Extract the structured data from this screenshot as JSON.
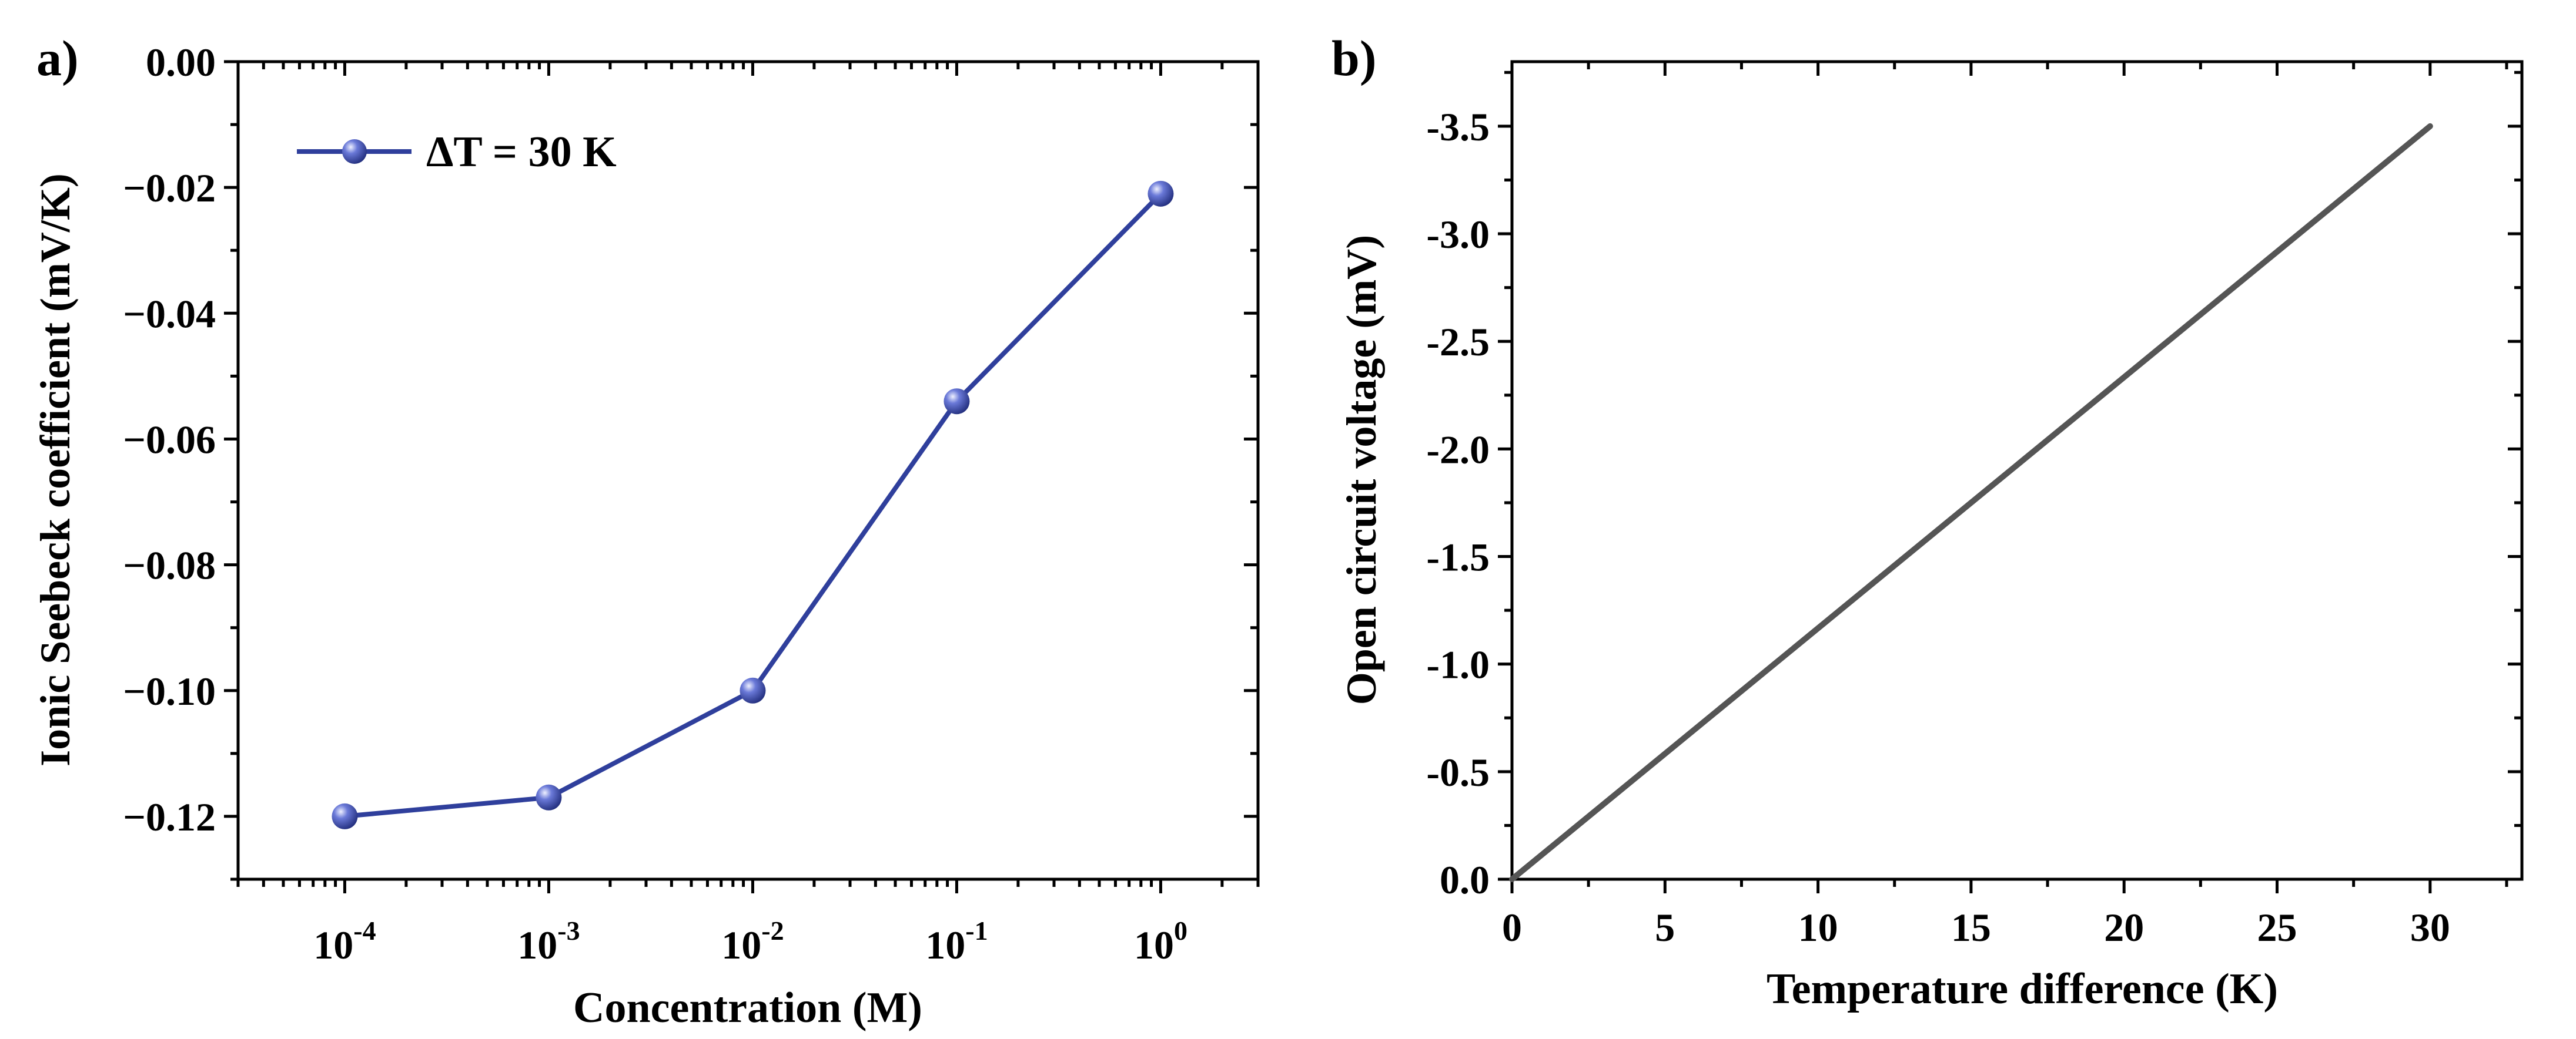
{
  "chart_data": [
    {
      "panel_label": "a)",
      "type": "line",
      "x_scale": "log",
      "x": [
        0.0001,
        0.001,
        0.01,
        0.1,
        1
      ],
      "x_tick_bases": [
        "10",
        "10",
        "10",
        "10",
        "10"
      ],
      "x_tick_exponents": [
        "-4",
        "-3",
        "-2",
        "-1",
        "0"
      ],
      "series": [
        {
          "name": "ΔT = 30 K",
          "values": [
            -0.12,
            -0.117,
            -0.1,
            -0.054,
            -0.021
          ],
          "color": "#2f3f9c",
          "marker": "sphere"
        }
      ],
      "xlabel": "Concentration (M)",
      "ylabel": "Ionic Seebeck coefficient (mV/K)",
      "xlim": [
        3e-05,
        3
      ],
      "ylim": [
        -0.13,
        0.0
      ],
      "y_ticks": [
        0.0,
        -0.02,
        -0.04,
        -0.06,
        -0.08,
        -0.1,
        -0.12
      ],
      "y_tick_labels": [
        "0.00",
        "−0.02",
        "−0.04",
        "−0.06",
        "−0.08",
        "−0.10",
        "−0.12"
      ],
      "legend_position": "top-left",
      "grid": false
    },
    {
      "panel_label": "b)",
      "type": "line",
      "x": [
        0,
        30
      ],
      "series": [
        {
          "name": "Open circuit voltage",
          "values": [
            0.0,
            -3.5
          ],
          "color": "#555555"
        }
      ],
      "xlabel": "Temperature difference (K)",
      "ylabel": "Open circuit voltage (mV)",
      "xlim": [
        0,
        33
      ],
      "ylim": [
        0.0,
        -3.8
      ],
      "x_ticks": [
        0,
        5,
        10,
        15,
        20,
        25,
        30
      ],
      "x_tick_labels": [
        "0",
        "5",
        "10",
        "15",
        "20",
        "25",
        "30"
      ],
      "y_ticks": [
        0.0,
        -0.5,
        -1.0,
        -1.5,
        -2.0,
        -2.5,
        -3.0,
        -3.5
      ],
      "y_tick_labels": [
        "0.0",
        "-0.5",
        "-1.0",
        "-1.5",
        "-2.0",
        "-2.5",
        "-3.0",
        "-3.5"
      ],
      "grid": false
    }
  ]
}
